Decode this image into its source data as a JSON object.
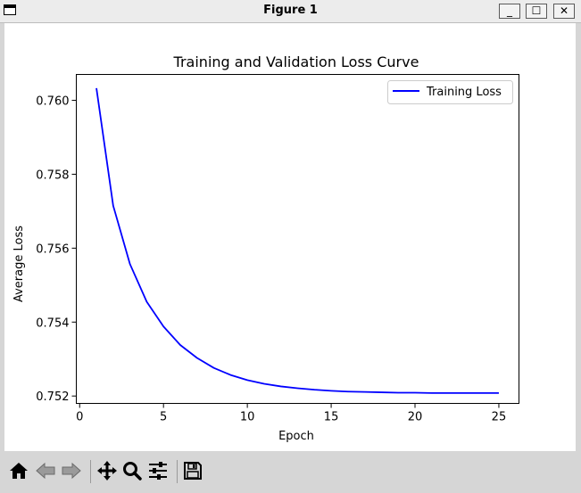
{
  "window": {
    "title": "Figure 1",
    "minimize_label": "_",
    "maximize_label": "☐",
    "close_label": "✕"
  },
  "toolbar": {
    "buttons": [
      {
        "icon": "home-icon",
        "label": "Home"
      },
      {
        "icon": "back-arrow-icon",
        "label": "Back"
      },
      {
        "icon": "forward-arrow-icon",
        "label": "Forward"
      },
      {
        "icon": "pan-icon",
        "label": "Pan"
      },
      {
        "icon": "zoom-icon",
        "label": "Zoom"
      },
      {
        "icon": "configure-subplots-icon",
        "label": "Subplots"
      },
      {
        "icon": "save-icon",
        "label": "Save"
      }
    ]
  },
  "chart_data": {
    "type": "line",
    "title": "Training and Validation Loss Curve",
    "xlabel": "Epoch",
    "ylabel": "Average Loss",
    "xlim": [
      -0.2,
      26.2
    ],
    "ylim": [
      0.7518,
      0.7607
    ],
    "xticks": [
      0,
      5,
      10,
      15,
      20,
      25
    ],
    "yticks": [
      0.752,
      0.754,
      0.756,
      0.758,
      0.76
    ],
    "ytick_labels": [
      "0.752",
      "0.754",
      "0.756",
      "0.758",
      "0.760"
    ],
    "grid": false,
    "legend_position": "upper right",
    "series": [
      {
        "name": "Training Loss",
        "color": "#0000ff",
        "x": [
          1,
          2,
          3,
          4,
          5,
          6,
          7,
          8,
          9,
          10,
          11,
          12,
          13,
          14,
          15,
          16,
          17,
          18,
          19,
          20,
          21,
          22,
          23,
          24,
          25
        ],
        "y": [
          0.76033,
          0.75715,
          0.75557,
          0.75455,
          0.75388,
          0.75338,
          0.75303,
          0.75276,
          0.75257,
          0.75243,
          0.75233,
          0.75226,
          0.75221,
          0.75217,
          0.75214,
          0.75212,
          0.75211,
          0.7521,
          0.75209,
          0.75209,
          0.75208,
          0.75208,
          0.75208,
          0.75208,
          0.75208
        ]
      }
    ]
  }
}
